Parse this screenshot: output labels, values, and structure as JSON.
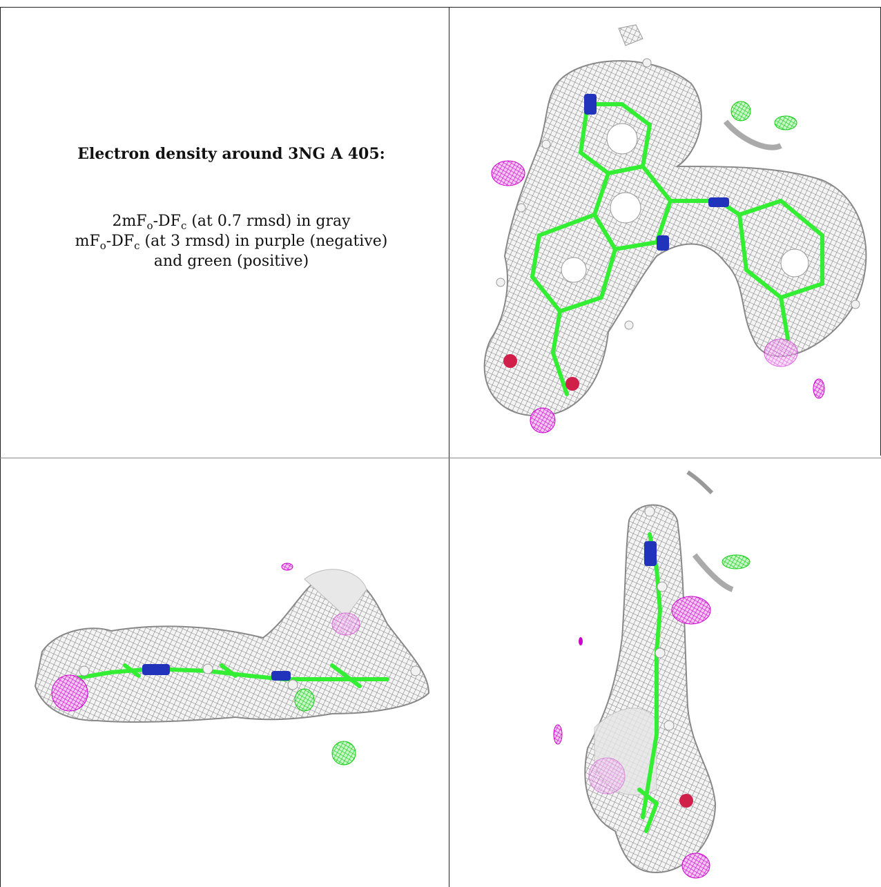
{
  "caption": {
    "title": "Electron density around 3NG A 405:",
    "line1": {
      "pre": "2mF",
      "s1": "o",
      "mid": "-DF",
      "s2": "c",
      "post": " (at 0.7 rmsd) in gray"
    },
    "line2": {
      "pre": "mF",
      "s1": "o",
      "mid": "-DF",
      "s2": "c",
      "post": " (at 3 rmsd) in purple (negative)"
    },
    "line3": "and green (positive)"
  },
  "colors": {
    "mesh_gray": "#8c8c8c",
    "bond_green": "#33ee33",
    "nitrogen_blue": "#2233bb",
    "oxygen_red": "#d0204a",
    "negative_purple": "#cc00cc",
    "positive_green": "#11dd11",
    "border": "#222222"
  },
  "panels": [
    "view-top-right",
    "view-bottom-left",
    "view-bottom-right"
  ]
}
